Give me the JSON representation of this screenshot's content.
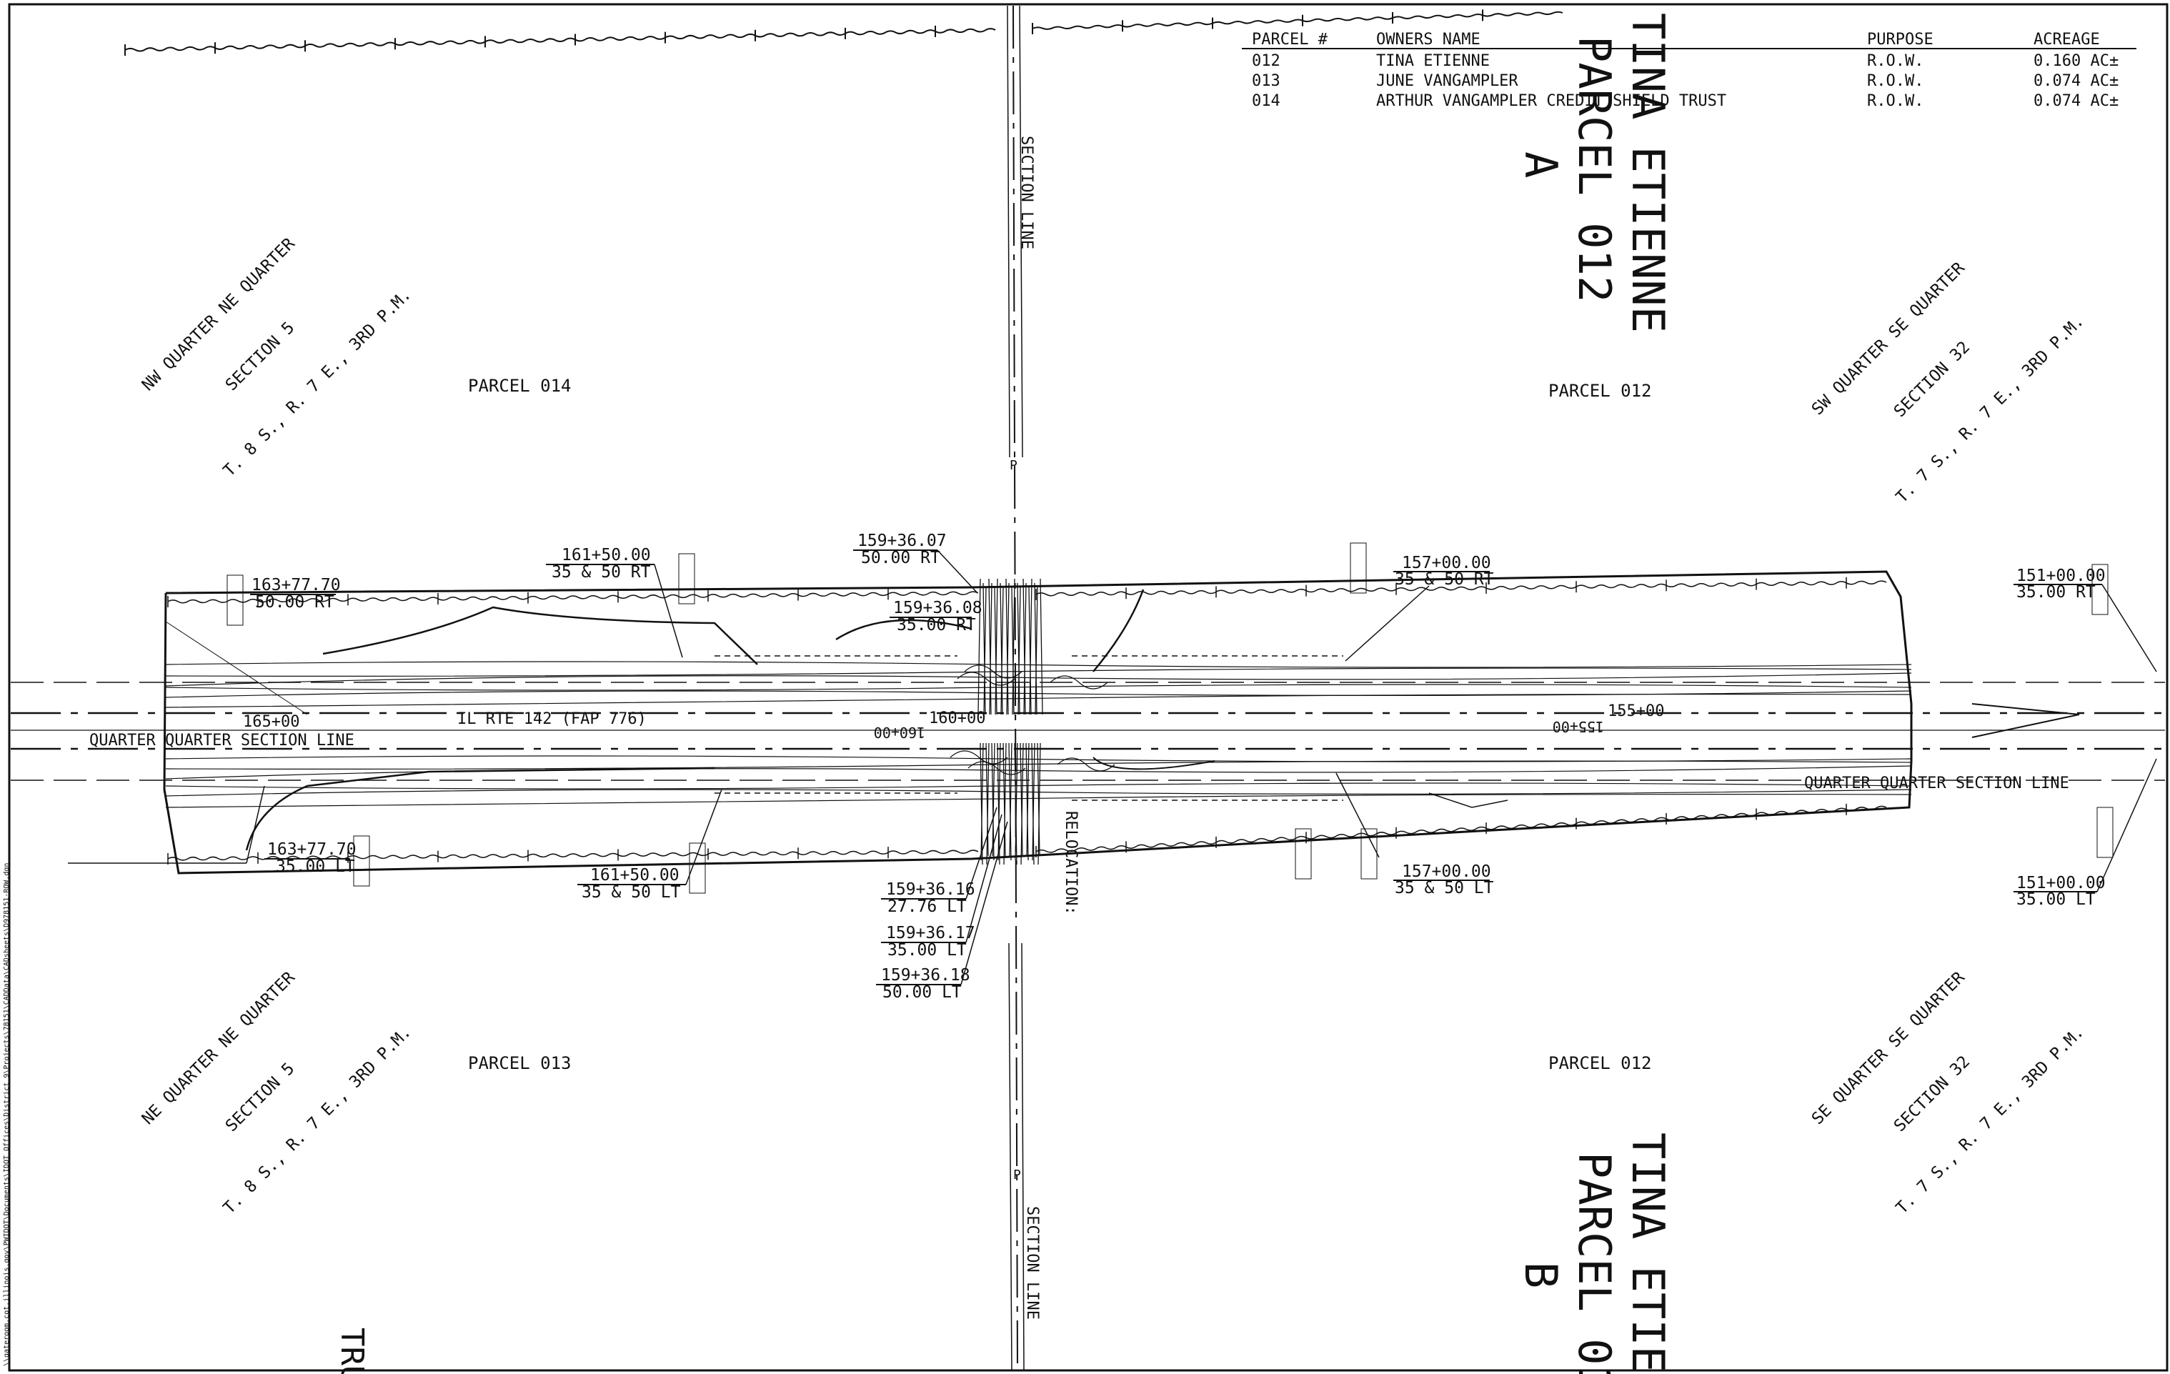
{
  "table": {
    "headers": [
      "PARCEL #",
      "OWNERS NAME",
      "PURPOSE",
      "ACREAGE"
    ],
    "rows": [
      [
        "012",
        "TINA ETIENNE",
        "R.O.W.",
        "0.160 AC±"
      ],
      [
        "013",
        "JUNE VANGAMPLER",
        "R.O.W.",
        "0.074 AC±"
      ],
      [
        "014",
        "ARTHUR VANGAMPLER CREDIT SHIELD TRUST",
        "R.O.W.",
        "0.074 AC±"
      ]
    ]
  },
  "titles": {
    "parcel_a": [
      "TINA ETIENNE",
      "PARCEL 012",
      "A"
    ],
    "parcel_b": [
      "TINA ETIEN",
      "PARCEL 01",
      "B"
    ],
    "bottom_left_partial": "TRU"
  },
  "parcel_labels": {
    "nw": "PARCEL 014",
    "ne": "PARCEL 012",
    "sw": "PARCEL 013",
    "se": "PARCEL 012"
  },
  "quarter_labels": {
    "top_left": [
      "NW QUARTER NE QUARTER",
      "SECTION 5",
      "T. 8 S., R. 7 E., 3RD P.M."
    ],
    "top_right": [
      "SW QUARTER SE QUARTER",
      "SECTION 32",
      "T. 7 S., R. 7 E., 3RD P.M."
    ],
    "bottom_left": [
      "NE QUARTER NE QUARTER",
      "SECTION 5",
      "T. 8 S., R. 7 E., 3RD P.M."
    ],
    "bottom_right": [
      "SE QUARTER SE QUARTER",
      "SECTION 32",
      "T. 7 S., R. 7 E., 3RD P.M."
    ]
  },
  "line_labels": {
    "section_line_top": "SECTION LINE",
    "section_line_bottom": "SECTION LINE",
    "quarter_line_left": "QUARTER QUARTER SECTION LINE",
    "quarter_line_right": "QUARTER QUARTER SECTION LINE",
    "route": "IL RTE 142 (FAP 776)",
    "relocation": "RELOCATION:"
  },
  "stations": {
    "s165": "165+00",
    "s160": "160+00",
    "s155": "155+00",
    "s160_inv": "160+00",
    "s155_inv": "155+00"
  },
  "callouts": [
    {
      "sta": "163+77.70",
      "off": "50.00 RT"
    },
    {
      "sta": "161+50.00",
      "off": "35 & 50 RT"
    },
    {
      "sta": "159+36.07",
      "off": "50.00 RT"
    },
    {
      "sta": "159+36.08",
      "off": "35.00 RT"
    },
    {
      "sta": "157+00.00",
      "off": "35 & 50 RT"
    },
    {
      "sta": "151+00.00",
      "off": "35.00 RT"
    },
    {
      "sta": "163+77.70",
      "off": "35.00 LT"
    },
    {
      "sta": "161+50.00",
      "off": "35 & 50 LT"
    },
    {
      "sta": "159+36.16",
      "off": "27.76 LT"
    },
    {
      "sta": "159+36.17",
      "off": "35.00 LT"
    },
    {
      "sta": "159+36.18",
      "off": "50.00 LT"
    },
    {
      "sta": "157+00.00",
      "off": "35 & 50 LT"
    },
    {
      "sta": "151+00.00",
      "off": "35.00 LT"
    }
  ],
  "side_path": "\\\\gateroom.cot.illinois.gov\\PWIDOT\\Documents\\IDOT Offices\\District 9\\Projects\\78151\\CADData\\CADsheets\\D978151-ROW.dgn"
}
